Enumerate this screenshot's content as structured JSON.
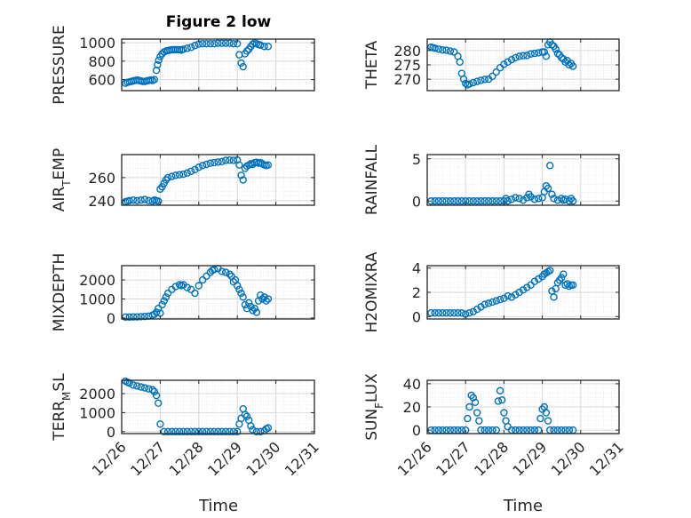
{
  "figure": {
    "title": "Figure 2 low",
    "xlabel": "Time",
    "date_ticks": [
      "12/26",
      "12/27",
      "12/28",
      "12/29",
      "12/30",
      "12/31"
    ],
    "marker_color": "#0072BD",
    "axes_color": "#262626",
    "grid_color": "#d9d9d9"
  },
  "chart_data": [
    {
      "id": "pressure",
      "type": "scatter",
      "ylabel": "PRESSURE",
      "xlim": [
        0,
        5
      ],
      "ylim": [
        480,
        1040
      ],
      "yticks": [
        600,
        800,
        1000
      ],
      "ytick_labels": [
        "600",
        "800",
        "1000"
      ],
      "xs": [
        0.1,
        0.15,
        0.2,
        0.25,
        0.3,
        0.35,
        0.4,
        0.45,
        0.5,
        0.55,
        0.6,
        0.65,
        0.7,
        0.75,
        0.8,
        0.85,
        0.9,
        0.93,
        0.96,
        1.0,
        1.05,
        1.1,
        1.15,
        1.2,
        1.25,
        1.3,
        1.35,
        1.4,
        1.45,
        1.5,
        1.55,
        1.6,
        1.7,
        1.8,
        1.9,
        2.0,
        2.1,
        2.2,
        2.3,
        2.4,
        2.5,
        2.6,
        2.7,
        2.8,
        2.9,
        3.0,
        3.05,
        3.1,
        3.15,
        3.2,
        3.25,
        3.3,
        3.35,
        3.4,
        3.45,
        3.5,
        3.55,
        3.6,
        3.7,
        3.8
      ],
      "ys": [
        560,
        570,
        575,
        580,
        585,
        590,
        595,
        590,
        585,
        580,
        580,
        585,
        590,
        595,
        590,
        600,
        700,
        760,
        810,
        850,
        880,
        900,
        910,
        915,
        920,
        925,
        925,
        925,
        925,
        925,
        920,
        930,
        940,
        950,
        970,
        985,
        990,
        990,
        990,
        990,
        995,
        995,
        995,
        995,
        990,
        990,
        870,
        780,
        740,
        880,
        910,
        930,
        960,
        985,
        1000,
        990,
        980,
        975,
        960,
        960
      ]
    },
    {
      "id": "theta",
      "type": "scatter",
      "ylabel": "THETA",
      "xlim": [
        0,
        5
      ],
      "ylim": [
        266,
        284
      ],
      "yticks": [
        270,
        275,
        280
      ],
      "ytick_labels": [
        "270",
        "275",
        "280"
      ],
      "xs": [
        0.1,
        0.15,
        0.2,
        0.3,
        0.4,
        0.5,
        0.6,
        0.7,
        0.8,
        0.85,
        0.9,
        0.95,
        1.0,
        1.05,
        1.1,
        1.2,
        1.3,
        1.4,
        1.5,
        1.6,
        1.7,
        1.8,
        1.9,
        2.0,
        2.1,
        2.2,
        2.3,
        2.4,
        2.5,
        2.6,
        2.7,
        2.8,
        2.9,
        3.0,
        3.05,
        3.1,
        3.15,
        3.2,
        3.25,
        3.3,
        3.35,
        3.4,
        3.45,
        3.5,
        3.55,
        3.6,
        3.65,
        3.7,
        3.75,
        3.8
      ],
      "ys": [
        281.2,
        281,
        280.8,
        280.5,
        280.2,
        280.1,
        279.8,
        279.5,
        278,
        276,
        272,
        270,
        268.5,
        268,
        268.3,
        268.8,
        269.2,
        269.6,
        269.9,
        270,
        271,
        272.5,
        274,
        275.2,
        276,
        276.8,
        277.5,
        278,
        278.2,
        278.3,
        278.8,
        279,
        279.2,
        279.5,
        279.5,
        278,
        282,
        283,
        282,
        281.5,
        280.5,
        279,
        278.5,
        277.5,
        277,
        276,
        276.5,
        275,
        275.5,
        274.5
      ]
    },
    {
      "id": "air_temp",
      "type": "scatter",
      "ylabel": "AIR_TEMP",
      "xlim": [
        0,
        5
      ],
      "ylim": [
        236,
        280
      ],
      "yticks": [
        240,
        260
      ],
      "ytick_labels": [
        "240",
        "260"
      ],
      "xs": [
        0.1,
        0.15,
        0.2,
        0.3,
        0.4,
        0.5,
        0.6,
        0.7,
        0.8,
        0.85,
        0.9,
        0.95,
        1.0,
        1.05,
        1.1,
        1.15,
        1.2,
        1.3,
        1.4,
        1.5,
        1.6,
        1.7,
        1.8,
        1.9,
        2.0,
        2.1,
        2.2,
        2.3,
        2.4,
        2.5,
        2.6,
        2.7,
        2.8,
        2.9,
        3.0,
        3.05,
        3.1,
        3.15,
        3.2,
        3.25,
        3.3,
        3.35,
        3.4,
        3.45,
        3.5,
        3.55,
        3.6,
        3.65,
        3.7,
        3.75,
        3.8
      ],
      "ys": [
        239,
        239.5,
        240,
        240.5,
        240,
        240.5,
        241,
        240,
        239.5,
        240.5,
        240,
        239.5,
        250,
        252,
        255,
        258,
        260,
        261,
        262,
        262.5,
        263,
        264,
        265.5,
        267,
        269,
        270.5,
        271.5,
        272.5,
        273,
        273.5,
        274,
        275,
        275.2,
        275,
        275.3,
        271,
        262,
        258,
        268,
        270,
        271,
        272,
        271.5,
        273,
        273.3,
        272.5,
        273,
        272,
        271,
        270.5,
        271
      ]
    },
    {
      "id": "rainfall",
      "type": "scatter",
      "ylabel": "RAINFALL",
      "xlim": [
        0,
        5
      ],
      "ylim": [
        -0.5,
        5.5
      ],
      "yticks": [
        0,
        5
      ],
      "ytick_labels": [
        "0",
        "5"
      ],
      "xs": [
        0.1,
        0.2,
        0.3,
        0.4,
        0.5,
        0.6,
        0.7,
        0.8,
        0.9,
        1.0,
        1.1,
        1.2,
        1.3,
        1.4,
        1.5,
        1.6,
        1.7,
        1.8,
        1.9,
        2.0,
        2.05,
        2.1,
        2.2,
        2.3,
        2.4,
        2.5,
        2.6,
        2.65,
        2.7,
        2.8,
        2.9,
        3.0,
        3.05,
        3.1,
        3.15,
        3.2,
        3.25,
        3.3,
        3.4,
        3.5,
        3.55,
        3.6,
        3.7,
        3.75,
        3.8
      ],
      "ys": [
        0,
        0,
        0,
        0,
        0,
        0,
        0,
        0,
        0,
        0,
        0,
        0,
        0,
        0,
        0,
        0,
        0,
        0,
        0,
        0,
        0.3,
        0,
        0.2,
        0.4,
        0.3,
        0.1,
        0.4,
        0.8,
        0.5,
        0.2,
        0.3,
        0.4,
        1.1,
        1.8,
        1.5,
        4.2,
        0.8,
        0.3,
        0.1,
        0.3,
        0.1,
        0.2,
        0,
        0.3,
        0
      ]
    },
    {
      "id": "mixdepth",
      "type": "scatter",
      "ylabel": "MIXDEPTH",
      "xlim": [
        0,
        5
      ],
      "ylim": [
        -50,
        2750
      ],
      "yticks": [
        0,
        1000,
        2000
      ],
      "ytick_labels": [
        "0",
        "1000",
        "2000"
      ],
      "xs": [
        0.1,
        0.2,
        0.3,
        0.4,
        0.5,
        0.6,
        0.7,
        0.8,
        0.85,
        0.9,
        0.95,
        1.0,
        1.05,
        1.1,
        1.15,
        1.2,
        1.3,
        1.4,
        1.5,
        1.55,
        1.6,
        1.7,
        1.8,
        1.9,
        2.0,
        2.1,
        2.2,
        2.3,
        2.35,
        2.4,
        2.5,
        2.6,
        2.7,
        2.8,
        2.85,
        2.9,
        2.95,
        3.0,
        3.05,
        3.1,
        3.15,
        3.2,
        3.25,
        3.3,
        3.35,
        3.4,
        3.45,
        3.5,
        3.55,
        3.6,
        3.65,
        3.7,
        3.75,
        3.8
      ],
      "ys": [
        50,
        50,
        60,
        60,
        70,
        80,
        100,
        150,
        200,
        300,
        500,
        250,
        700,
        900,
        1100,
        1300,
        1500,
        1650,
        1750,
        1700,
        1750,
        1600,
        1500,
        1300,
        1700,
        2000,
        2200,
        2400,
        2500,
        2550,
        2600,
        2450,
        2400,
        2300,
        2200,
        1900,
        2000,
        1700,
        1500,
        1300,
        1100,
        700,
        500,
        800,
        600,
        400,
        500,
        300,
        900,
        1200,
        1000,
        1100,
        900,
        1000
      ]
    },
    {
      "id": "h2omixra",
      "type": "scatter",
      "ylabel": "H2OMIXRA",
      "xlim": [
        0,
        5
      ],
      "ylim": [
        -0.2,
        4.2
      ],
      "yticks": [
        0,
        2,
        4
      ],
      "ytick_labels": [
        "0",
        "2",
        "4"
      ],
      "xs": [
        0.1,
        0.2,
        0.3,
        0.4,
        0.5,
        0.6,
        0.7,
        0.8,
        0.9,
        1.0,
        1.1,
        1.2,
        1.3,
        1.4,
        1.5,
        1.6,
        1.7,
        1.8,
        1.9,
        2.0,
        2.1,
        2.2,
        2.3,
        2.4,
        2.5,
        2.6,
        2.7,
        2.8,
        2.9,
        3.0,
        3.05,
        3.1,
        3.15,
        3.2,
        3.25,
        3.3,
        3.35,
        3.4,
        3.45,
        3.5,
        3.55,
        3.6,
        3.65,
        3.7,
        3.75,
        3.8
      ],
      "ys": [
        0.3,
        0.3,
        0.3,
        0.3,
        0.3,
        0.3,
        0.3,
        0.3,
        0.3,
        0.2,
        0.3,
        0.4,
        0.6,
        0.8,
        1.0,
        1.1,
        1.2,
        1.3,
        1.4,
        1.5,
        1.7,
        1.6,
        1.8,
        2.0,
        2.2,
        2.4,
        2.6,
        2.9,
        3.1,
        3.3,
        3.5,
        3.6,
        3.7,
        3.8,
        2.1,
        1.6,
        2.3,
        2.8,
        3.0,
        3.2,
        3.5,
        2.6,
        2.7,
        2.5,
        2.6,
        2.6
      ]
    },
    {
      "id": "terr_msl",
      "type": "scatter",
      "ylabel": "TERR_MSL",
      "xlim": [
        0,
        5
      ],
      "ylim": [
        -100,
        2700
      ],
      "yticks": [
        0,
        1000,
        2000
      ],
      "ytick_labels": [
        "0",
        "1000",
        "2000"
      ],
      "xs": [
        0.1,
        0.15,
        0.2,
        0.3,
        0.4,
        0.5,
        0.6,
        0.7,
        0.8,
        0.85,
        0.9,
        0.95,
        1.0,
        1.1,
        1.2,
        1.3,
        1.4,
        1.5,
        1.6,
        1.7,
        1.8,
        1.9,
        2.0,
        2.1,
        2.2,
        2.3,
        2.4,
        2.5,
        2.6,
        2.7,
        2.8,
        2.9,
        3.0,
        3.05,
        3.1,
        3.15,
        3.2,
        3.25,
        3.3,
        3.35,
        3.4,
        3.5,
        3.6,
        3.7,
        3.75,
        3.8
      ],
      "ys": [
        2650,
        2600,
        2550,
        2450,
        2400,
        2350,
        2300,
        2250,
        2200,
        2100,
        1900,
        1500,
        400,
        0,
        0,
        0,
        0,
        0,
        0,
        0,
        0,
        0,
        0,
        0,
        0,
        0,
        0,
        0,
        0,
        0,
        0,
        0,
        0,
        400,
        700,
        1200,
        900,
        800,
        600,
        300,
        100,
        0,
        0,
        50,
        150,
        200
      ]
    },
    {
      "id": "sun_flux",
      "type": "scatter",
      "ylabel": "SUN_FLUX",
      "xlim": [
        0,
        5
      ],
      "ylim": [
        -3,
        43
      ],
      "yticks": [
        0,
        20,
        40
      ],
      "ytick_labels": [
        "0",
        "20",
        "40"
      ],
      "xs": [
        0.1,
        0.2,
        0.3,
        0.4,
        0.5,
        0.6,
        0.7,
        0.8,
        0.9,
        1.0,
        1.05,
        1.1,
        1.15,
        1.2,
        1.25,
        1.3,
        1.35,
        1.4,
        1.5,
        1.6,
        1.7,
        1.8,
        1.85,
        1.9,
        1.95,
        2.0,
        2.05,
        2.1,
        2.2,
        2.3,
        2.4,
        2.5,
        2.6,
        2.7,
        2.8,
        2.9,
        2.95,
        3.0,
        3.05,
        3.1,
        3.15,
        3.2,
        3.3,
        3.4,
        3.5,
        3.6,
        3.7,
        3.8
      ],
      "ys": [
        0,
        0,
        0,
        0,
        0,
        0,
        0,
        0,
        0,
        0,
        10,
        20,
        30,
        28,
        24,
        15,
        8,
        0,
        0,
        0,
        0,
        0,
        25,
        34,
        26,
        15,
        8,
        3,
        0,
        0,
        0,
        0,
        0,
        0,
        0,
        0,
        10,
        18,
        20,
        15,
        8,
        0,
        0,
        0,
        0,
        0,
        0,
        0
      ]
    }
  ]
}
